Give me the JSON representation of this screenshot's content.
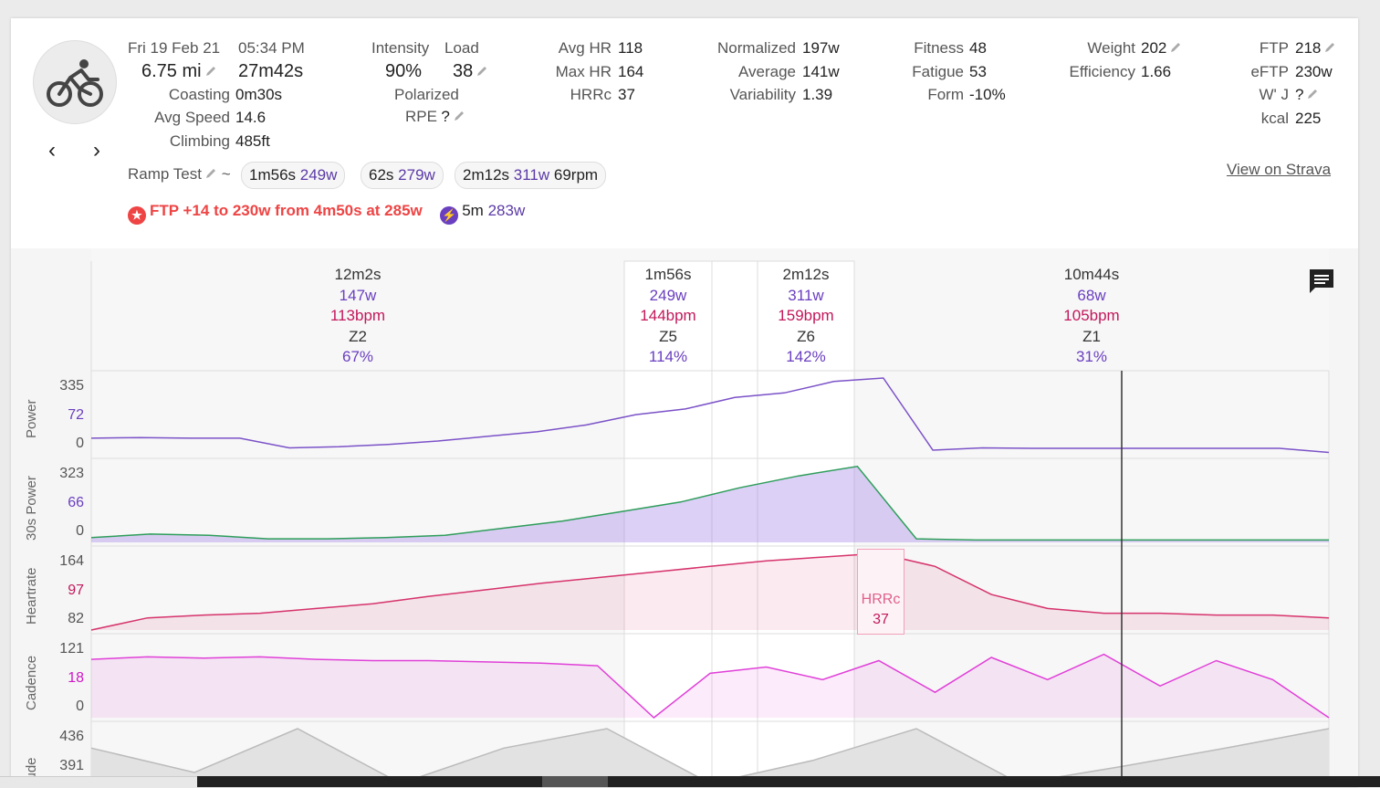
{
  "activity": {
    "date": "Fri 19 Feb 21",
    "time": "05:34 PM",
    "distance": "6.75 mi",
    "duration": "27m42s",
    "coasting_label": "Coasting",
    "coasting": "0m30s",
    "avg_speed_label": "Avg Speed",
    "avg_speed": "14.6",
    "climbing_label": "Climbing",
    "climbing": "485ft"
  },
  "intensity": {
    "intensity_label": "Intensity",
    "intensity": "90%",
    "load_label": "Load",
    "load": "38",
    "polarized_label": "Polarized",
    "rpe_label": "RPE",
    "rpe": "?"
  },
  "hr": {
    "avg_label": "Avg HR",
    "avg": "118",
    "max_label": "Max HR",
    "max": "164",
    "hrrc_label": "HRRc",
    "hrrc": "37"
  },
  "power": {
    "normalized_label": "Normalized",
    "normalized": "197w",
    "average_label": "Average",
    "average": "141w",
    "variability_label": "Variability",
    "variability": "1.39"
  },
  "fitness": {
    "fitness_label": "Fitness",
    "fitness": "48",
    "fatigue_label": "Fatigue",
    "fatigue": "53",
    "form_label": "Form",
    "form": "-10%"
  },
  "body": {
    "weight_label": "Weight",
    "weight": "202",
    "efficiency_label": "Efficiency",
    "efficiency": "1.66"
  },
  "ftp": {
    "ftp_label": "FTP",
    "ftp": "218",
    "eftp_label": "eFTP",
    "eftp": "230w",
    "wj_label": "W' J",
    "wj": "?",
    "kcal_label": "kcal",
    "kcal": "225"
  },
  "workout": {
    "name": "Ramp Test",
    "tilde": "~",
    "chips": [
      {
        "dur": "1m56s",
        "watts": "249w",
        "extra": ""
      },
      {
        "dur": "62s",
        "watts": "279w",
        "extra": ""
      },
      {
        "dur": "2m12s",
        "watts": "311w",
        "extra": "69rpm"
      }
    ]
  },
  "links": {
    "strava": "View on Strava"
  },
  "achievements": {
    "ftp_text": "FTP +14 to 230w from 4m50s at 285w",
    "peak_dur": "5m",
    "peak_watts": "283w"
  },
  "intervals": [
    {
      "duration": "12m2s",
      "watts": "147w",
      "bpm": "113bpm",
      "zone": "Z2",
      "pct": "67%"
    },
    {
      "duration": "1m56s",
      "watts": "249w",
      "bpm": "144bpm",
      "zone": "Z5",
      "pct": "114%"
    },
    {
      "duration": "2m12s",
      "watts": "311w",
      "bpm": "159bpm",
      "zone": "Z6",
      "pct": "142%"
    },
    {
      "duration": "10m44s",
      "watts": "68w",
      "bpm": "105bpm",
      "zone": "Z1",
      "pct": "31%"
    }
  ],
  "chart_data": {
    "type": "line",
    "panels": [
      {
        "name": "Power",
        "ticks": [
          "335",
          "72",
          "0"
        ],
        "color": "#7b52c8",
        "values": [
          72,
          75,
          72,
          72,
          30,
          35,
          45,
          60,
          80,
          100,
          130,
          175,
          200,
          250,
          270,
          320,
          335,
          20,
          30,
          28,
          28,
          28,
          28,
          28,
          28,
          10
        ]
      },
      {
        "name": "30s Power",
        "ticks": [
          "323",
          "66",
          "0"
        ],
        "color": "#2e9e5a",
        "values": [
          20,
          35,
          30,
          15,
          15,
          20,
          30,
          60,
          90,
          130,
          170,
          230,
          280,
          320,
          15,
          10,
          10,
          10,
          10,
          10,
          10,
          10
        ]
      },
      {
        "name": "Heartrate",
        "ticks": [
          "164",
          "97",
          "82"
        ],
        "color": "#d6336c",
        "values": [
          82,
          95,
          98,
          100,
          105,
          110,
          118,
          125,
          132,
          138,
          144,
          150,
          156,
          160,
          164,
          150,
          120,
          105,
          100,
          100,
          98,
          98,
          95
        ]
      },
      {
        "name": "Cadence",
        "ticks": [
          "121",
          "18",
          "0"
        ],
        "color": "#e040d8",
        "values": [
          92,
          96,
          94,
          96,
          92,
          90,
          90,
          88,
          86,
          82,
          0,
          70,
          80,
          60,
          90,
          40,
          95,
          60,
          100,
          50,
          90,
          60,
          0
        ]
      },
      {
        "name": "Altitude",
        "ticks": [
          "436",
          "391"
        ],
        "color": "#bbbbbb",
        "values": [
          420,
          400,
          436,
          391,
          420,
          436,
          391,
          410,
          436,
          391,
          405,
          420,
          436
        ]
      }
    ],
    "hrrc_label": "HRRc",
    "hrrc_value": "37",
    "y_label_short": "itude"
  },
  "icons": {
    "avatar": "bicycle-icon",
    "prev": "chevron-left-icon",
    "next": "chevron-right-icon",
    "comment": "comment-icon",
    "pencil": "pencil-icon",
    "ftp_badge": "star-badge-icon",
    "peak_badge": "lightning-icon"
  },
  "colors": {
    "power": "#7b52c8",
    "heartrate": "#d6336c",
    "cadence": "#e040d8",
    "accent_red": "#e44444"
  }
}
